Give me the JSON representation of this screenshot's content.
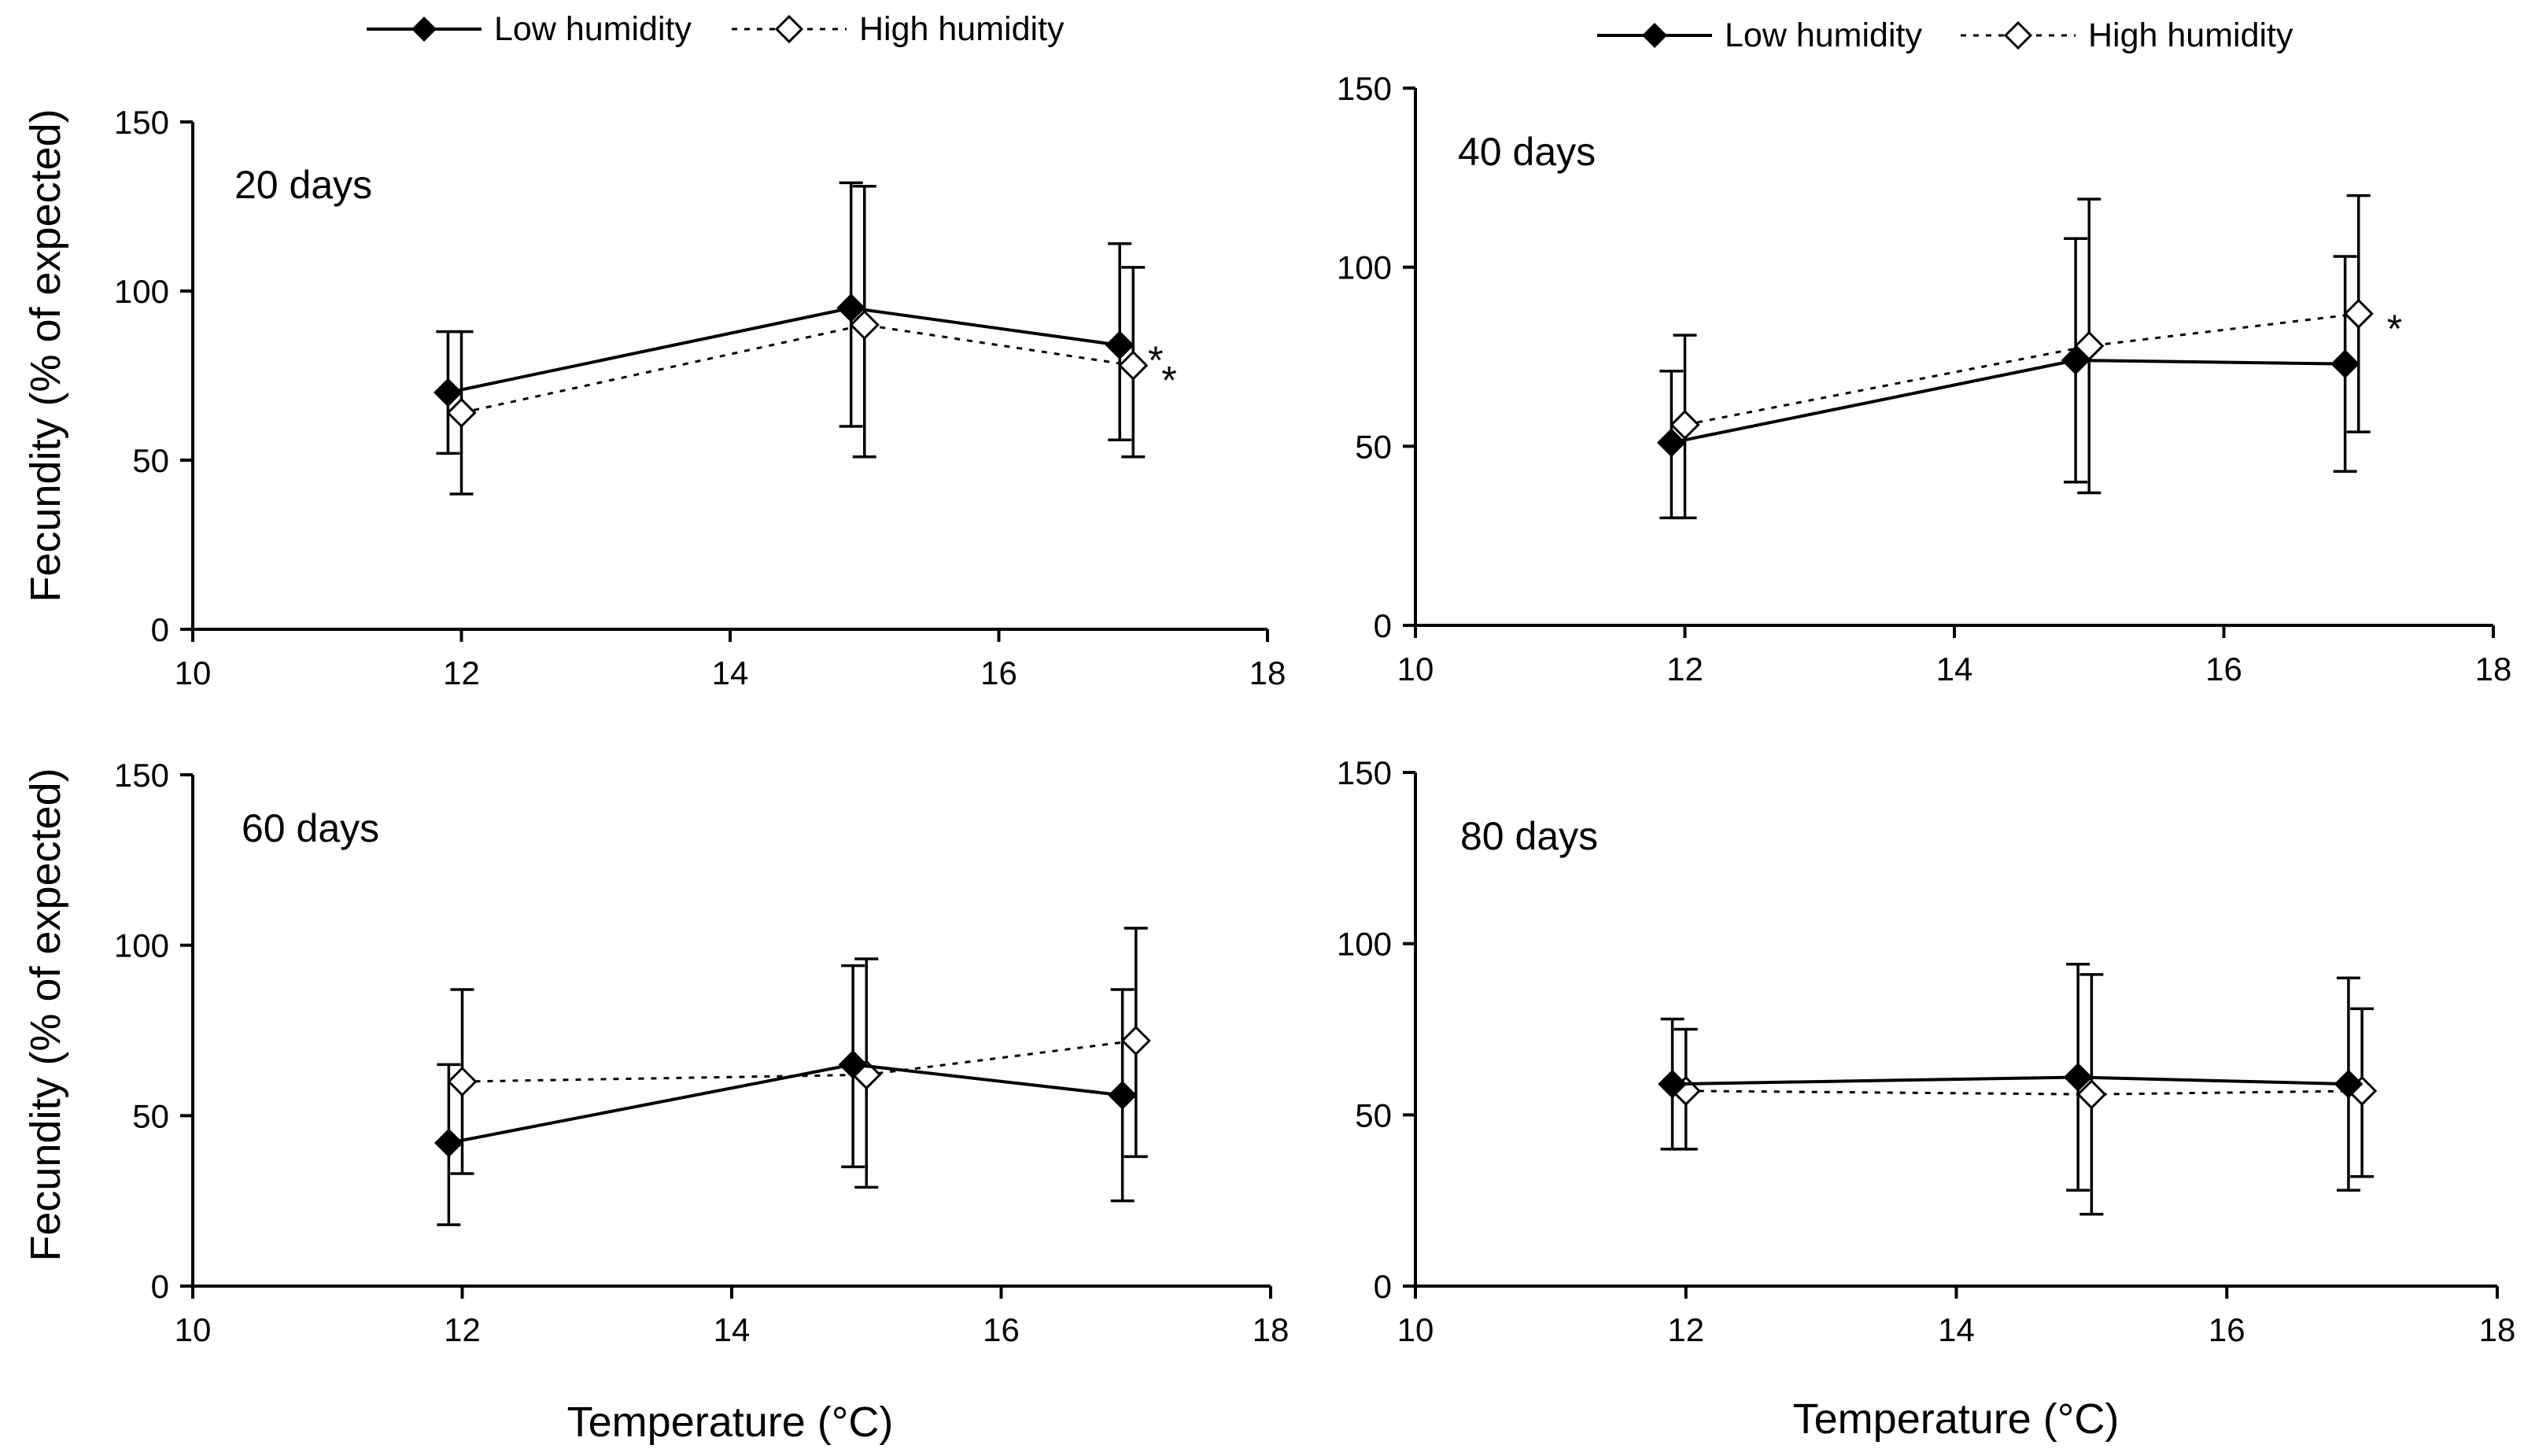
{
  "figure": {
    "y_axis_title": "Fecundity (% of expected)",
    "x_axis_title": "Temperature (°C)"
  },
  "legend": {
    "low_label": "Low humidity",
    "high_label": "High humidity"
  },
  "colors": {
    "low": "#000000",
    "high": "#000000",
    "high_marker_fill": "#ffffff",
    "background": "#ffffff"
  },
  "chart_data": [
    {
      "type": "line",
      "panel_label": "20 days",
      "xlim": [
        10,
        18
      ],
      "ylim": [
        0,
        150
      ],
      "x_ticks": [
        10,
        12,
        14,
        16,
        18
      ],
      "y_ticks": [
        0,
        50,
        100,
        150
      ],
      "x_tick_labels": [
        "10",
        "12",
        "14",
        "16",
        "18"
      ],
      "y_tick_labels": [
        "0",
        "50",
        "100",
        "150"
      ],
      "series": [
        {
          "name": "Low humidity",
          "style": "solid",
          "marker": "filled-diamond",
          "x": [
            11.9,
            14.9,
            16.9
          ],
          "y": [
            70,
            95,
            84
          ],
          "err_low": [
            52,
            60,
            56
          ],
          "err_high": [
            88,
            132,
            114
          ],
          "annotations": [
            "",
            "",
            "*"
          ]
        },
        {
          "name": "High humidity",
          "style": "dotted",
          "marker": "open-diamond",
          "x": [
            12.0,
            15.0,
            17.0
          ],
          "y": [
            64,
            90,
            78
          ],
          "err_low": [
            40,
            51,
            51
          ],
          "err_high": [
            88,
            131,
            107
          ],
          "annotations": [
            "",
            "",
            "*"
          ]
        }
      ]
    },
    {
      "type": "line",
      "panel_label": "40 days",
      "xlim": [
        10,
        18
      ],
      "ylim": [
        0,
        150
      ],
      "x_ticks": [
        10,
        12,
        14,
        16,
        18
      ],
      "y_ticks": [
        0,
        50,
        100,
        150
      ],
      "x_tick_labels": [
        "10",
        "12",
        "14",
        "16",
        "18"
      ],
      "y_tick_labels": [
        "0",
        "50",
        "100",
        "150"
      ],
      "series": [
        {
          "name": "Low humidity",
          "style": "solid",
          "marker": "filled-diamond",
          "x": [
            11.9,
            14.9,
            16.9
          ],
          "y": [
            51,
            74,
            73
          ],
          "err_low": [
            30,
            40,
            43
          ],
          "err_high": [
            71,
            108,
            103
          ],
          "annotations": [
            "",
            "",
            ""
          ]
        },
        {
          "name": "High humidity",
          "style": "dotted",
          "marker": "open-diamond",
          "x": [
            12.0,
            15.0,
            17.0
          ],
          "y": [
            56,
            78,
            87
          ],
          "err_low": [
            30,
            37,
            54
          ],
          "err_high": [
            81,
            119,
            120
          ],
          "annotations": [
            "",
            "",
            "*"
          ]
        }
      ]
    },
    {
      "type": "line",
      "panel_label": "60 days",
      "xlim": [
        10,
        18
      ],
      "ylim": [
        0,
        150
      ],
      "x_ticks": [
        10,
        12,
        14,
        16,
        18
      ],
      "y_ticks": [
        0,
        50,
        100,
        150
      ],
      "x_tick_labels": [
        "10",
        "12",
        "14",
        "16",
        "18"
      ],
      "y_tick_labels": [
        "0",
        "50",
        "100",
        "150"
      ],
      "series": [
        {
          "name": "Low humidity",
          "style": "solid",
          "marker": "filled-diamond",
          "x": [
            11.9,
            14.9,
            16.9
          ],
          "y": [
            42,
            65,
            56
          ],
          "err_low": [
            18,
            35,
            25
          ],
          "err_high": [
            65,
            94,
            87
          ],
          "annotations": [
            "",
            "",
            ""
          ]
        },
        {
          "name": "High humidity",
          "style": "dotted",
          "marker": "open-diamond",
          "x": [
            12.0,
            15.0,
            17.0
          ],
          "y": [
            60,
            62,
            72
          ],
          "err_low": [
            33,
            29,
            38
          ],
          "err_high": [
            87,
            96,
            105
          ],
          "annotations": [
            "",
            "",
            ""
          ]
        }
      ]
    },
    {
      "type": "line",
      "panel_label": "80 days",
      "xlim": [
        10,
        18
      ],
      "ylim": [
        0,
        150
      ],
      "x_ticks": [
        10,
        12,
        14,
        16,
        18
      ],
      "y_ticks": [
        0,
        50,
        100,
        150
      ],
      "x_tick_labels": [
        "10",
        "12",
        "14",
        "16",
        "18"
      ],
      "y_tick_labels": [
        "0",
        "50",
        "100",
        "150"
      ],
      "series": [
        {
          "name": "Low humidity",
          "style": "solid",
          "marker": "filled-diamond",
          "x": [
            11.9,
            14.9,
            16.9
          ],
          "y": [
            59,
            61,
            59
          ],
          "err_low": [
            40,
            28,
            28
          ],
          "err_high": [
            78,
            94,
            90
          ],
          "annotations": [
            "",
            "",
            ""
          ]
        },
        {
          "name": "High humidity",
          "style": "dotted",
          "marker": "open-diamond",
          "x": [
            12.0,
            15.0,
            17.0
          ],
          "y": [
            57,
            56,
            57
          ],
          "err_low": [
            40,
            21,
            32
          ],
          "err_high": [
            75,
            91,
            81
          ],
          "annotations": [
            "",
            "",
            ""
          ]
        }
      ]
    }
  ]
}
